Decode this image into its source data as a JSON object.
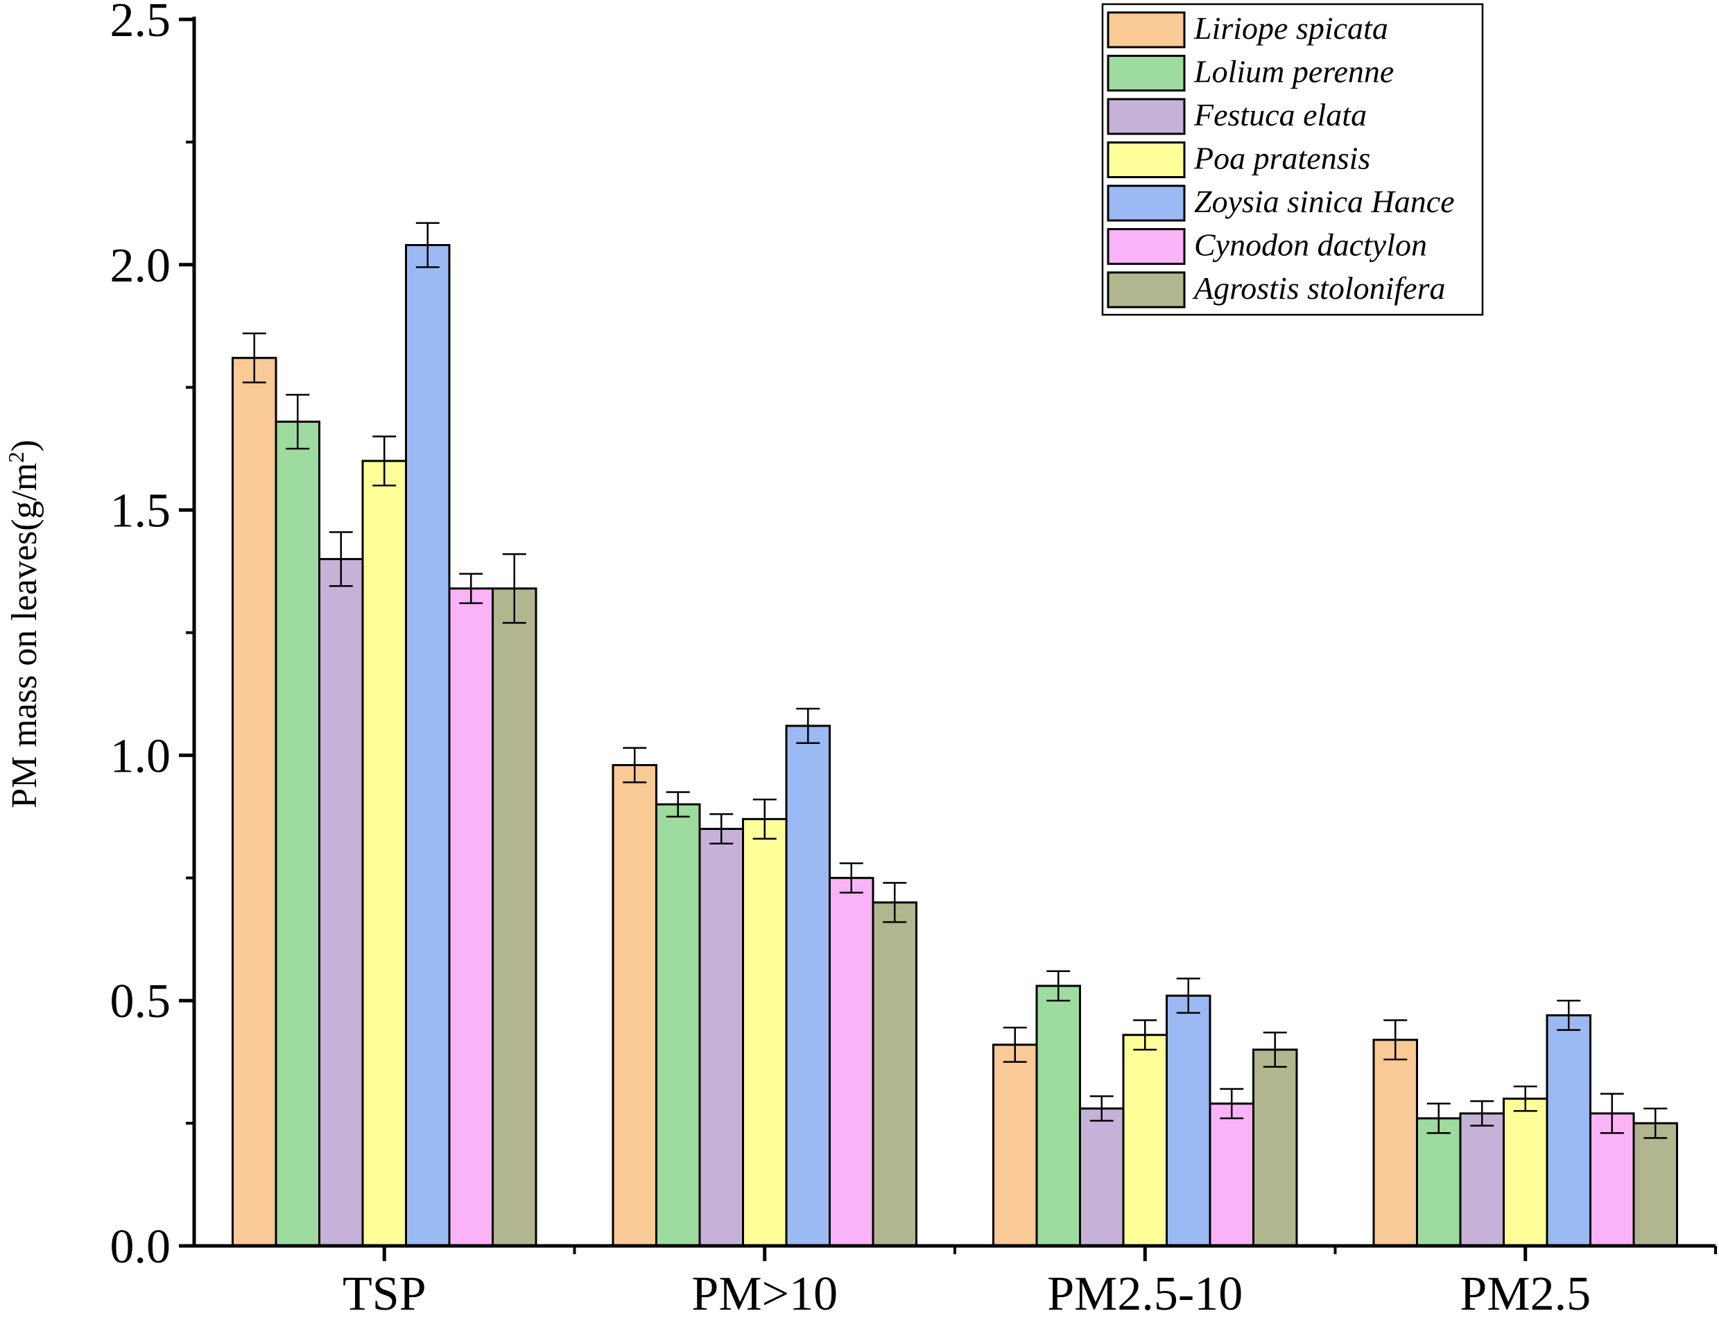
{
  "chart_data": {
    "type": "bar",
    "title": "",
    "xlabel": "",
    "ylabel": "PM mass on leaves(g/m",
    "ylabel_superscript": "2",
    "ylabel_suffix": ")",
    "ylim": [
      0,
      2.5
    ],
    "yticks": [
      "0.0",
      "0.5",
      "1.0",
      "1.5",
      "2.0",
      "2.5"
    ],
    "legend_position": "top-right",
    "categories": [
      "TSP",
      "PM>10",
      "PM2.5-10",
      "PM2.5"
    ],
    "series": [
      {
        "name": "Liriope spicata",
        "color": "#F9C996",
        "values": [
          1.81,
          0.98,
          0.41,
          0.42
        ],
        "errors": [
          0.05,
          0.035,
          0.035,
          0.04
        ]
      },
      {
        "name": "Lolium perenne",
        "color": "#9EDB9E",
        "values": [
          1.68,
          0.9,
          0.53,
          0.26
        ],
        "errors": [
          0.055,
          0.025,
          0.03,
          0.03
        ]
      },
      {
        "name": "Festuca elata",
        "color": "#C6B2D8",
        "values": [
          1.4,
          0.85,
          0.28,
          0.27
        ],
        "errors": [
          0.055,
          0.03,
          0.025,
          0.025
        ]
      },
      {
        "name": "Poa pratensis",
        "color": "#FFFF99",
        "values": [
          1.6,
          0.87,
          0.43,
          0.3
        ],
        "errors": [
          0.05,
          0.04,
          0.03,
          0.025
        ]
      },
      {
        "name": "Zoysia sinica Hance",
        "color": "#9BB9F2",
        "values": [
          2.04,
          1.06,
          0.51,
          0.47
        ],
        "errors": [
          0.045,
          0.035,
          0.035,
          0.03
        ]
      },
      {
        "name": "Cynodon dactylon",
        "color": "#FBB3F7",
        "values": [
          1.34,
          0.75,
          0.29,
          0.27
        ],
        "errors": [
          0.03,
          0.03,
          0.03,
          0.04
        ]
      },
      {
        "name": "Agrostis stolonifera",
        "color": "#B2B68F",
        "values": [
          1.34,
          0.7,
          0.4,
          0.25
        ],
        "errors": [
          0.07,
          0.04,
          0.035,
          0.03
        ]
      }
    ]
  }
}
